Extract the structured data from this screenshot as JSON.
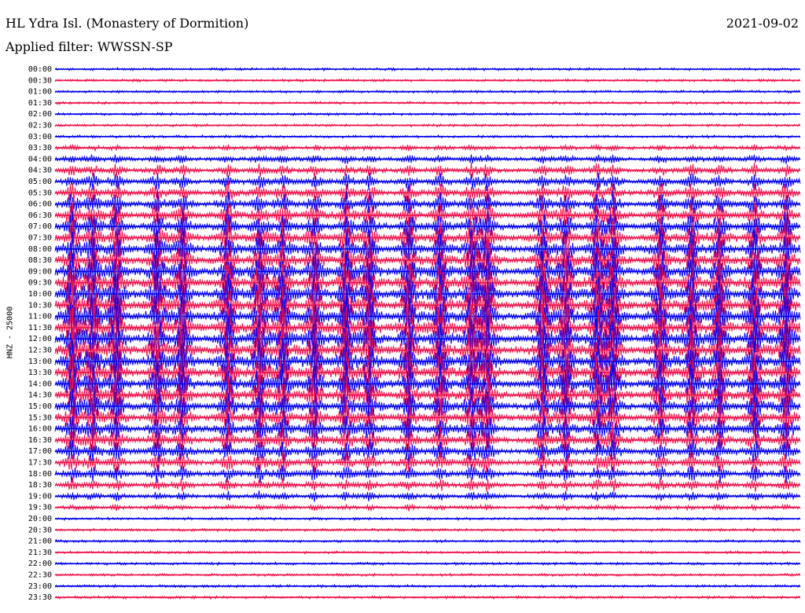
{
  "header": {
    "title": "HL Ydra Isl. (Monastery of Dormition)",
    "date": "2021-09-02",
    "filter": "Applied filter: WWSSN-SP"
  },
  "axis": {
    "channel_label": "HNZ - 25000"
  },
  "colors": {
    "trace_a": "#0000ee",
    "trace_b": "#f0104a"
  },
  "chart_data": {
    "type": "line",
    "title": "HL Ydra Isl. (Monastery of Dormition)",
    "ylabel": "HNZ - 25000",
    "rows": [
      "00:00",
      "00:30",
      "01:00",
      "01:30",
      "02:00",
      "02:30",
      "03:00",
      "03:30",
      "04:00",
      "04:30",
      "05:00",
      "05:30",
      "06:00",
      "06:30",
      "07:00",
      "07:30",
      "08:00",
      "08:30",
      "09:00",
      "09:30",
      "10:00",
      "10:30",
      "11:00",
      "11:30",
      "12:00",
      "12:30",
      "13:00",
      "13:30",
      "14:00",
      "14:30",
      "15:00",
      "15:30",
      "16:00",
      "16:30",
      "17:00",
      "17:30",
      "18:00",
      "18:30",
      "19:00",
      "19:30",
      "20:00",
      "20:30",
      "21:00",
      "21:30",
      "22:00",
      "22:30",
      "23:00",
      "23:30"
    ],
    "series_colors": [
      "#0000ee",
      "#f0104a"
    ],
    "grid": false
  }
}
